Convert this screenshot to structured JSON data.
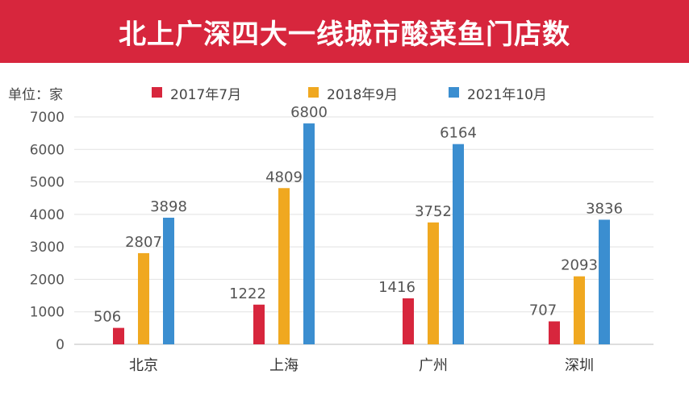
{
  "title": "北上广深四大一线城市酸菜鱼门店数",
  "chart_data": {
    "type": "bar",
    "title": "北上广深四大一线城市酸菜鱼门店数",
    "unit_label": "单位：家",
    "categories": [
      "北京",
      "上海",
      "广州",
      "深圳"
    ],
    "series": [
      {
        "name": "2017年7月",
        "color": "#d7263d",
        "values": [
          506,
          1222,
          1416,
          707
        ]
      },
      {
        "name": "2018年9月",
        "color": "#f0a820",
        "values": [
          2807,
          4809,
          3752,
          2093
        ]
      },
      {
        "name": "2021年10月",
        "color": "#3b8ed0",
        "values": [
          3898,
          6800,
          6164,
          3836
        ]
      }
    ],
    "ylim": [
      0,
      7000
    ],
    "yticks": [
      0,
      1000,
      2000,
      3000,
      4000,
      5000,
      6000,
      7000
    ],
    "grid": true,
    "legend": "top"
  }
}
